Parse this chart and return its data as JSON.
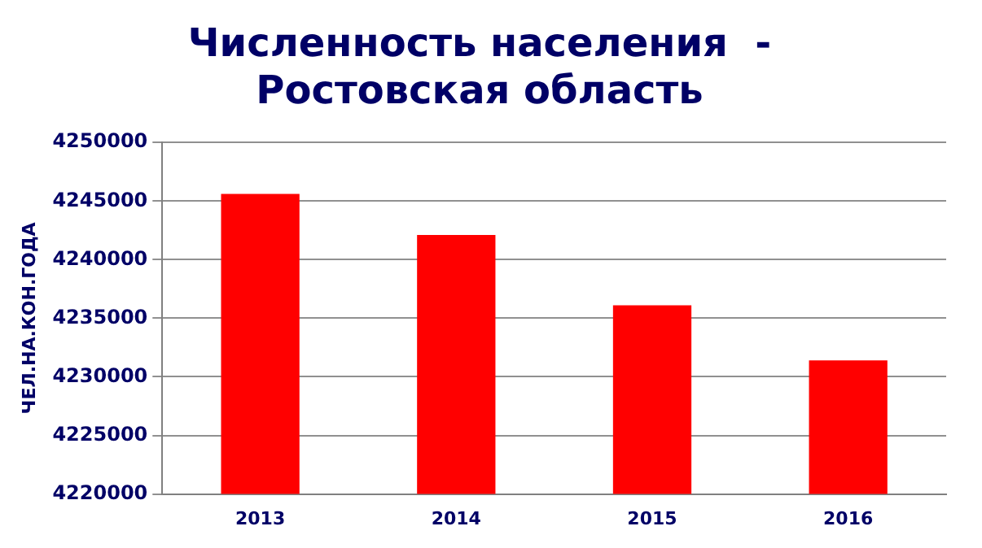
{
  "chart_data": {
    "type": "bar",
    "title": "Численность населения  -\nРостовская область",
    "ylabel": "ЧЕЛ.НА.КОН.ГОДА",
    "categories": [
      "2013",
      "2014",
      "2015",
      "2016"
    ],
    "values": [
      4245600,
      4242100,
      4236100,
      4231400
    ],
    "color": "#ff0000",
    "ylim": [
      4220000,
      4250000
    ],
    "yticks": [
      4220000,
      4225000,
      4230000,
      4235000,
      4240000,
      4245000,
      4250000
    ],
    "grid": "y",
    "legend": false
  }
}
